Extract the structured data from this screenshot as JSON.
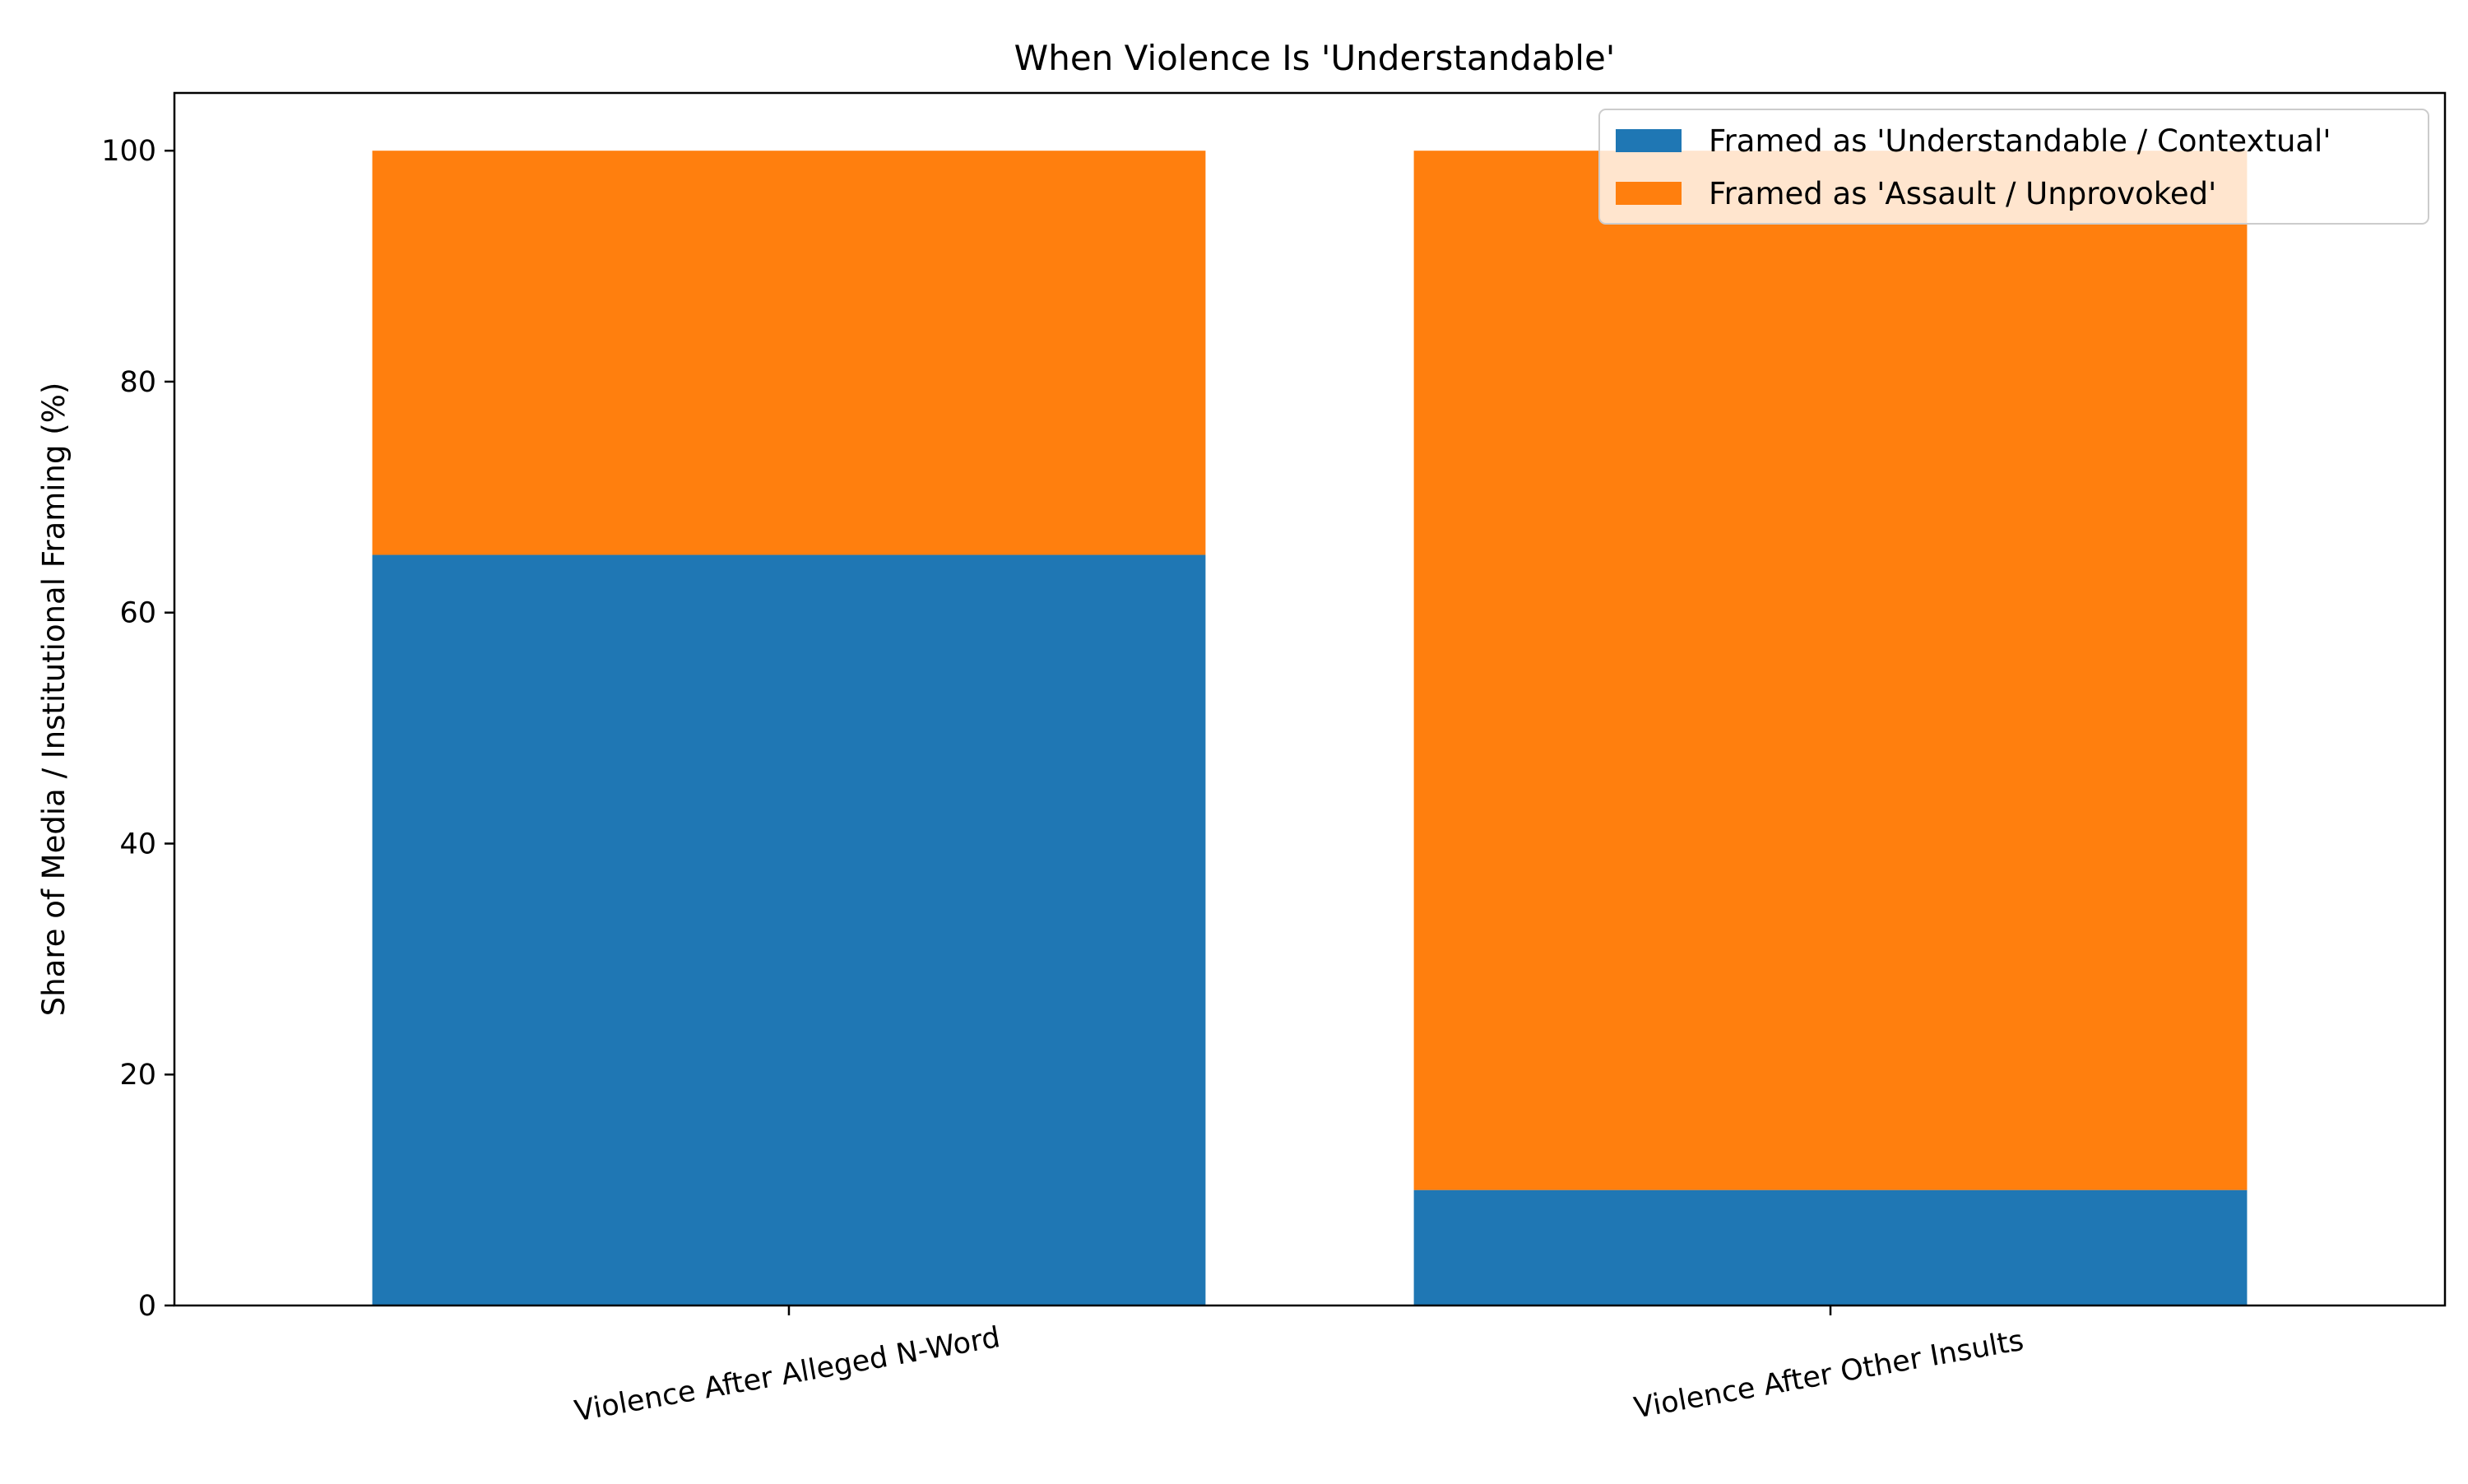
{
  "chart_data": {
    "type": "bar",
    "stacked": true,
    "title": "When Violence Is 'Understandable'",
    "xlabel": "",
    "ylabel": "Share of Media / Institutional Framing (%)",
    "categories": [
      "Violence After Alleged N-Word",
      "Violence After Other Insults"
    ],
    "series": [
      {
        "name": "Framed as 'Understandable / Contextual'",
        "values": [
          65,
          10
        ],
        "color": "#1f77b4"
      },
      {
        "name": "Framed as 'Assault / Unprovoked'",
        "values": [
          35,
          90
        ],
        "color": "#ff7f0e"
      }
    ],
    "ylim": [
      0,
      105
    ],
    "yticks": [
      0,
      20,
      40,
      60,
      80,
      100
    ],
    "grid": false,
    "legend_position": "top-right",
    "xtick_rotation": 10
  }
}
